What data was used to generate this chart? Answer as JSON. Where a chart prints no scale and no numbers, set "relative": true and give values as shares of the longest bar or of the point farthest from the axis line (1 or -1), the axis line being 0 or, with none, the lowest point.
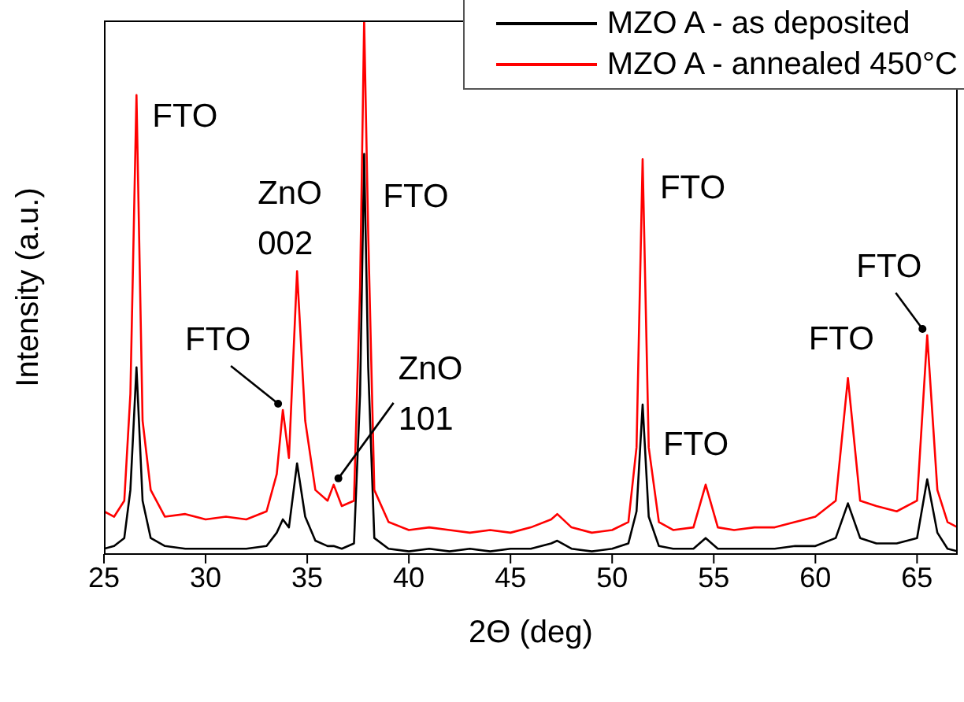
{
  "chart_data": {
    "type": "line",
    "relative": true,
    "xlabel": "2Θ (deg)",
    "ylabel": "Intensity (a.u.)",
    "legend": "top right",
    "grid": false,
    "marker": "none",
    "line_style": "solid",
    "tick_labels": "x",
    "xlim": [
      25,
      67
    ],
    "xticks": [
      25,
      30,
      35,
      40,
      45,
      50,
      55,
      60,
      65
    ],
    "x": [
      25,
      25.5,
      26,
      26.3,
      26.6,
      26.9,
      27.3,
      28,
      29,
      30,
      31,
      32,
      33,
      33.5,
      33.8,
      34.1,
      34.5,
      34.9,
      35.4,
      36,
      36.3,
      36.7,
      37.3,
      37.6,
      37.8,
      38.0,
      38.3,
      39,
      40,
      41,
      42,
      43,
      44,
      45,
      46,
      47,
      47.3,
      48,
      49,
      50,
      50.8,
      51.2,
      51.5,
      51.8,
      52.3,
      53,
      54,
      54.6,
      55.2,
      56,
      57,
      58,
      59,
      60,
      61,
      61.6,
      62.2,
      63,
      64,
      65,
      65.5,
      66,
      66.5,
      67
    ],
    "series": [
      {
        "name": "MZO A - as deposited",
        "color": "#000000",
        "values": [
          0.01,
          0.015,
          0.03,
          0.12,
          0.35,
          0.1,
          0.03,
          0.015,
          0.01,
          0.01,
          0.01,
          0.01,
          0.015,
          0.04,
          0.065,
          0.05,
          0.17,
          0.07,
          0.025,
          0.015,
          0.015,
          0.01,
          0.02,
          0.3,
          0.75,
          0.35,
          0.03,
          0.01,
          0.005,
          0.01,
          0.005,
          0.01,
          0.005,
          0.01,
          0.01,
          0.02,
          0.025,
          0.01,
          0.005,
          0.01,
          0.02,
          0.08,
          0.28,
          0.07,
          0.015,
          0.01,
          0.01,
          0.03,
          0.01,
          0.01,
          0.01,
          0.01,
          0.015,
          0.015,
          0.03,
          0.095,
          0.03,
          0.02,
          0.02,
          0.03,
          0.14,
          0.04,
          0.01,
          0.005
        ]
      },
      {
        "name": "MZO A - annealed 450°C",
        "color": "#ff0000",
        "values": [
          0.08,
          0.07,
          0.1,
          0.3,
          0.86,
          0.25,
          0.12,
          0.07,
          0.075,
          0.065,
          0.07,
          0.065,
          0.08,
          0.15,
          0.27,
          0.18,
          0.53,
          0.25,
          0.12,
          0.1,
          0.13,
          0.09,
          0.1,
          0.5,
          1,
          0.6,
          0.12,
          0.06,
          0.045,
          0.05,
          0.045,
          0.04,
          0.045,
          0.04,
          0.05,
          0.065,
          0.075,
          0.05,
          0.04,
          0.045,
          0.06,
          0.2,
          0.74,
          0.2,
          0.06,
          0.045,
          0.05,
          0.13,
          0.05,
          0.045,
          0.05,
          0.05,
          0.06,
          0.07,
          0.1,
          0.33,
          0.1,
          0.09,
          0.08,
          0.1,
          0.41,
          0.12,
          0.06,
          0.05
        ]
      }
    ],
    "annotations": [
      {
        "text": "FTO",
        "x": 26.6,
        "y": 0.86
      },
      {
        "text": "FTO",
        "x": 33.8,
        "y": 0.27
      },
      {
        "text": "ZnO 002",
        "x": 34.5,
        "y": 0.53
      },
      {
        "text": "FTO",
        "x": 37.8,
        "y": 0.68
      },
      {
        "text": "ZnO 101",
        "x": 36.3,
        "y": 0.13
      },
      {
        "text": "FTO",
        "x": 51.5,
        "y": 0.74
      },
      {
        "text": "FTO",
        "x": 54.6,
        "y": 0.13
      },
      {
        "text": "FTO",
        "x": 61.6,
        "y": 0.33
      },
      {
        "text": "FTO",
        "x": 65.5,
        "y": 0.41
      }
    ]
  }
}
